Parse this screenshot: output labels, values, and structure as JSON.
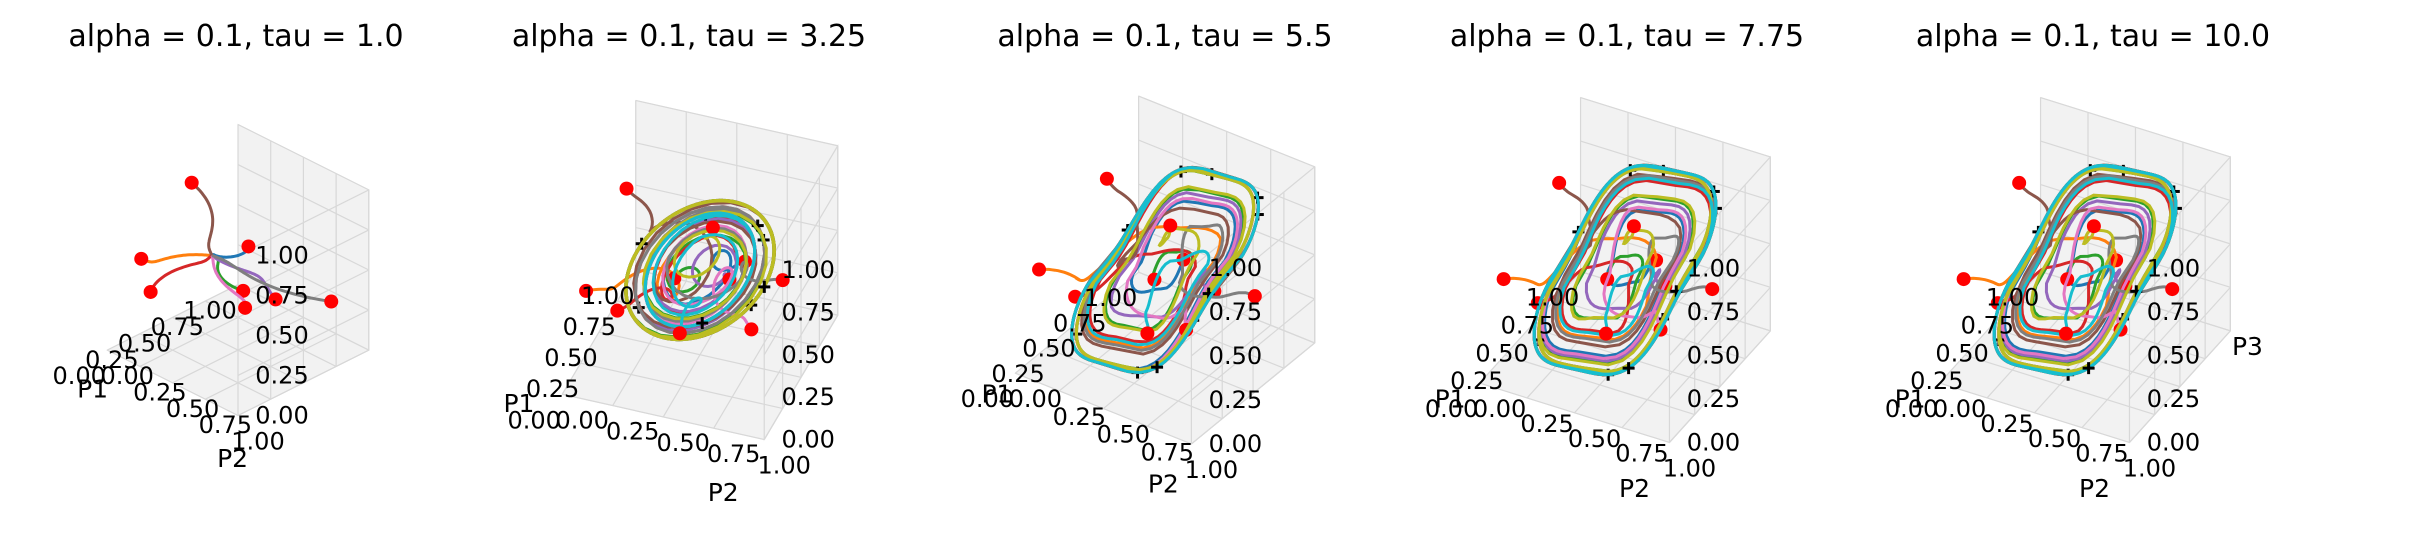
{
  "chart_data": [
    {
      "type": "line3d",
      "title": "alpha = 0.1, tau = 1.0",
      "xlabel": "P1",
      "ylabel": "P2",
      "zlabel": "",
      "xticks": [
        "0.00",
        "0.25",
        "0.50",
        "0.75",
        "1.00"
      ],
      "yticks": [
        "0.00",
        "0.25",
        "0.50",
        "0.75",
        "1.00"
      ],
      "zticks": [
        "0.00",
        "0.25",
        "0.50",
        "0.75",
        "1.00"
      ],
      "xlim": [
        0,
        1
      ],
      "ylim": [
        0,
        1
      ],
      "zlim": [
        0,
        1
      ],
      "trajectories": 8,
      "grid": true
    },
    {
      "type": "line3d",
      "title": "alpha = 0.1, tau = 3.25",
      "xlabel": "P1",
      "ylabel": "P2",
      "zlabel": "",
      "xticks": [
        "0.00",
        "0.25",
        "0.50",
        "0.75",
        "1.00"
      ],
      "yticks": [
        "0.00",
        "0.25",
        "0.50",
        "0.75",
        "1.00"
      ],
      "zticks": [
        "0.00",
        "0.25",
        "0.50",
        "0.75",
        "1.00"
      ],
      "xlim": [
        0,
        1
      ],
      "ylim": [
        0,
        1
      ],
      "zlim": [
        0,
        1
      ],
      "trajectories": 10,
      "grid": true
    },
    {
      "type": "line3d",
      "title": "alpha = 0.1, tau = 5.5",
      "xlabel": "P1",
      "ylabel": "P2",
      "zlabel": "",
      "xticks": [
        "0.00",
        "0.25",
        "0.50",
        "0.75",
        "1.00"
      ],
      "yticks": [
        "0.00",
        "0.25",
        "0.50",
        "0.75",
        "1.00"
      ],
      "zticks": [
        "0.00",
        "0.25",
        "0.50",
        "0.75",
        "1.00"
      ],
      "xlim": [
        0,
        1
      ],
      "ylim": [
        0,
        1
      ],
      "zlim": [
        0,
        1
      ],
      "trajectories": 10,
      "grid": true
    },
    {
      "type": "line3d",
      "title": "alpha = 0.1, tau = 7.75",
      "xlabel": "P1",
      "ylabel": "P2",
      "zlabel": "",
      "xticks": [
        "0.00",
        "0.25",
        "0.50",
        "0.75",
        "1.00"
      ],
      "yticks": [
        "0.00",
        "0.25",
        "0.50",
        "0.75",
        "1.00"
      ],
      "zticks": [
        "0.00",
        "0.25",
        "0.50",
        "0.75",
        "1.00"
      ],
      "xlim": [
        0,
        1
      ],
      "ylim": [
        0,
        1
      ],
      "zlim": [
        0,
        1
      ],
      "trajectories": 10,
      "grid": true
    },
    {
      "type": "line3d",
      "title": "alpha = 0.1, tau = 10.0",
      "xlabel": "P1",
      "ylabel": "P2",
      "zlabel": "P3",
      "xticks": [
        "0.00",
        "0.25",
        "0.50",
        "0.75",
        "1.00"
      ],
      "yticks": [
        "0.00",
        "0.25",
        "0.50",
        "0.75",
        "1.00"
      ],
      "zticks": [
        "0.00",
        "0.25",
        "0.50",
        "0.75",
        "1.00"
      ],
      "xlim": [
        0,
        1
      ],
      "ylim": [
        0,
        1
      ],
      "zlim": [
        0,
        1
      ],
      "trajectories": 10,
      "grid": true
    }
  ],
  "colors": {
    "series": [
      "#1f77b4",
      "#ff7f0e",
      "#2ca02c",
      "#d62728",
      "#9467bd",
      "#8c564b",
      "#e377c2",
      "#7f7f7f",
      "#bcbd22",
      "#17becf"
    ],
    "start_marker": "#ff0000",
    "end_marker": "#000000",
    "pane": "#f2f2f2",
    "grid": "#d8d8d8"
  }
}
